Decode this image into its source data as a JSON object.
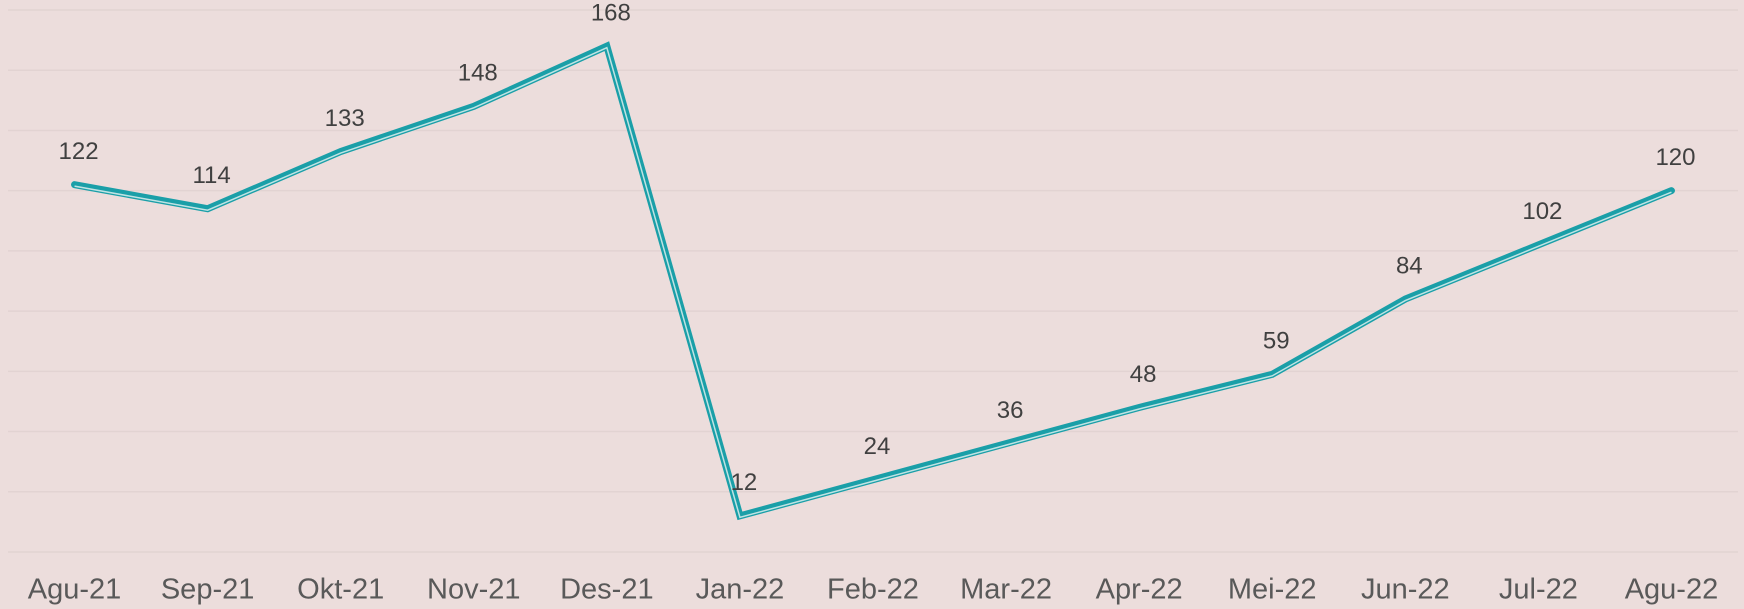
{
  "chart_data": {
    "type": "line",
    "categories": [
      "Agu-21",
      "Sep-21",
      "Okt-21",
      "Nov-21",
      "Des-21",
      "Jan-22",
      "Feb-22",
      "Mar-22",
      "Apr-22",
      "Mei-22",
      "Jun-22",
      "Jul-22",
      "Agu-22"
    ],
    "values": [
      122,
      114,
      133,
      148,
      168,
      12,
      24,
      36,
      48,
      59,
      84,
      102,
      120
    ],
    "color": "#1a9fa8",
    "ylim": [
      0,
      180
    ],
    "yticks": [
      0,
      20,
      40,
      60,
      80,
      100,
      120,
      140,
      160,
      180
    ],
    "grid": true
  }
}
